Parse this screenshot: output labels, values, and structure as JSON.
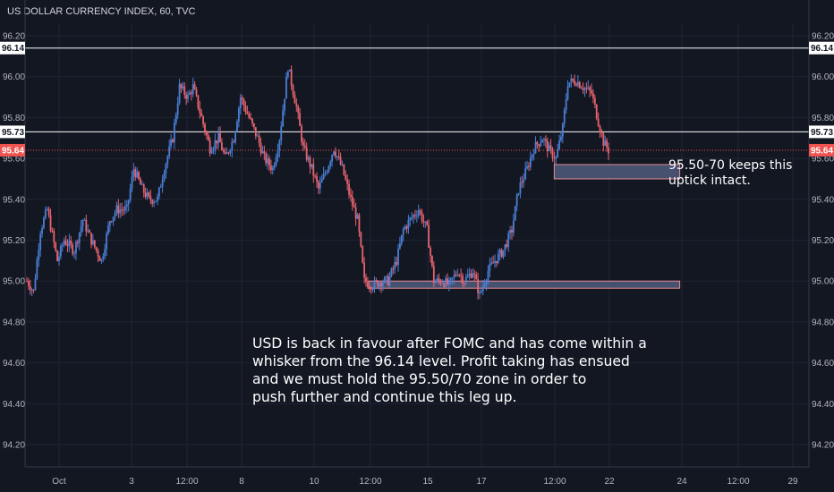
{
  "chart_title": "US DOLLAR CURRENCY INDEX, 60, TVC",
  "colors": {
    "background": "#131722",
    "candle_up": "#4a7fd6",
    "candle_down": "#e8636e",
    "current_price": "#ef5350",
    "zone_fill": "#4f5c7d",
    "zone_border": "#e58c95",
    "text": "#d1d4dc"
  },
  "chart_data": {
    "type": "candlestick",
    "title": "US DOLLAR CURRENCY INDEX, 60, TVC",
    "ylim": [
      94.1,
      96.25
    ],
    "y_ticks": [
      "96.20",
      "96.00",
      "95.80",
      "95.60",
      "95.40",
      "95.20",
      "95.00",
      "94.80",
      "94.60",
      "94.40",
      "94.20"
    ],
    "x_tick_labels": [
      "Oct",
      "3",
      "12:00",
      "8",
      "10",
      "12:00",
      "15",
      "17",
      "12:00",
      "22",
      "24",
      "12:00",
      "29"
    ],
    "grid": true,
    "price_path": [
      [
        0,
        95.0
      ],
      [
        4,
        94.95
      ],
      [
        8,
        95.25
      ],
      [
        12,
        95.35
      ],
      [
        18,
        95.1
      ],
      [
        22,
        95.2
      ],
      [
        28,
        95.15
      ],
      [
        33,
        95.3
      ],
      [
        38,
        95.2
      ],
      [
        44,
        95.1
      ],
      [
        49,
        95.3
      ],
      [
        53,
        95.35
      ],
      [
        59,
        95.35
      ],
      [
        63,
        95.55
      ],
      [
        68,
        95.45
      ],
      [
        72,
        95.4
      ],
      [
        77,
        95.4
      ],
      [
        81,
        95.55
      ],
      [
        86,
        95.7
      ],
      [
        90,
        95.95
      ],
      [
        95,
        95.9
      ],
      [
        98,
        95.95
      ],
      [
        103,
        95.8
      ],
      [
        108,
        95.65
      ],
      [
        113,
        95.7
      ],
      [
        117,
        95.6
      ],
      [
        122,
        95.7
      ],
      [
        126,
        95.9
      ],
      [
        131,
        95.8
      ],
      [
        136,
        95.7
      ],
      [
        140,
        95.6
      ],
      [
        145,
        95.55
      ],
      [
        149,
        95.7
      ],
      [
        154,
        96.05
      ],
      [
        159,
        95.85
      ],
      [
        163,
        95.65
      ],
      [
        168,
        95.55
      ],
      [
        172,
        95.45
      ],
      [
        177,
        95.55
      ],
      [
        181,
        95.65
      ],
      [
        186,
        95.55
      ],
      [
        191,
        95.4
      ],
      [
        195,
        95.3
      ],
      [
        199,
        95.0
      ],
      [
        204,
        94.98
      ],
      [
        209,
        95.0
      ],
      [
        213,
        95.0
      ],
      [
        218,
        95.1
      ],
      [
        222,
        95.25
      ],
      [
        226,
        95.3
      ],
      [
        231,
        95.35
      ],
      [
        236,
        95.25
      ],
      [
        240,
        95.0
      ],
      [
        245,
        95.0
      ],
      [
        249,
        94.98
      ],
      [
        254,
        95.05
      ],
      [
        258,
        95.0
      ],
      [
        263,
        95.05
      ],
      [
        267,
        94.93
      ],
      [
        272,
        95.05
      ],
      [
        276,
        95.1
      ],
      [
        281,
        95.15
      ],
      [
        286,
        95.25
      ],
      [
        290,
        95.45
      ],
      [
        295,
        95.55
      ],
      [
        299,
        95.65
      ],
      [
        304,
        95.7
      ],
      [
        308,
        95.64
      ],
      [
        312,
        95.6
      ],
      [
        316,
        95.75
      ],
      [
        319,
        95.97
      ],
      [
        324,
        95.98
      ],
      [
        328,
        95.95
      ],
      [
        333,
        95.92
      ],
      [
        337,
        95.78
      ],
      [
        340,
        95.68
      ],
      [
        343,
        95.64
      ]
    ],
    "price_path_note": "",
    "current_price": 95.64,
    "reference_levels": [
      96.14,
      95.73
    ],
    "zones": [
      {
        "y_low": 95.5,
        "y_high": 95.57,
        "x_start": 311,
        "x_end": 385
      },
      {
        "y_low": 94.97,
        "y_high": 95.0,
        "x_start": 201,
        "x_end": 385
      }
    ],
    "x_end": 450
  },
  "price_badges": {
    "upper_level": "96.14",
    "middle_level": "95.73",
    "current": "95.64"
  },
  "annotations": {
    "zone_note": "95.50-70 keeps this\nuptick intact.",
    "main_note": "USD is back in favour after FOMC and has come within a\nwhisker from the 96.14 level. Profit taking has ensued\nand we must hold the 95.50/70 zone in order to\npush further and continue this leg up."
  }
}
